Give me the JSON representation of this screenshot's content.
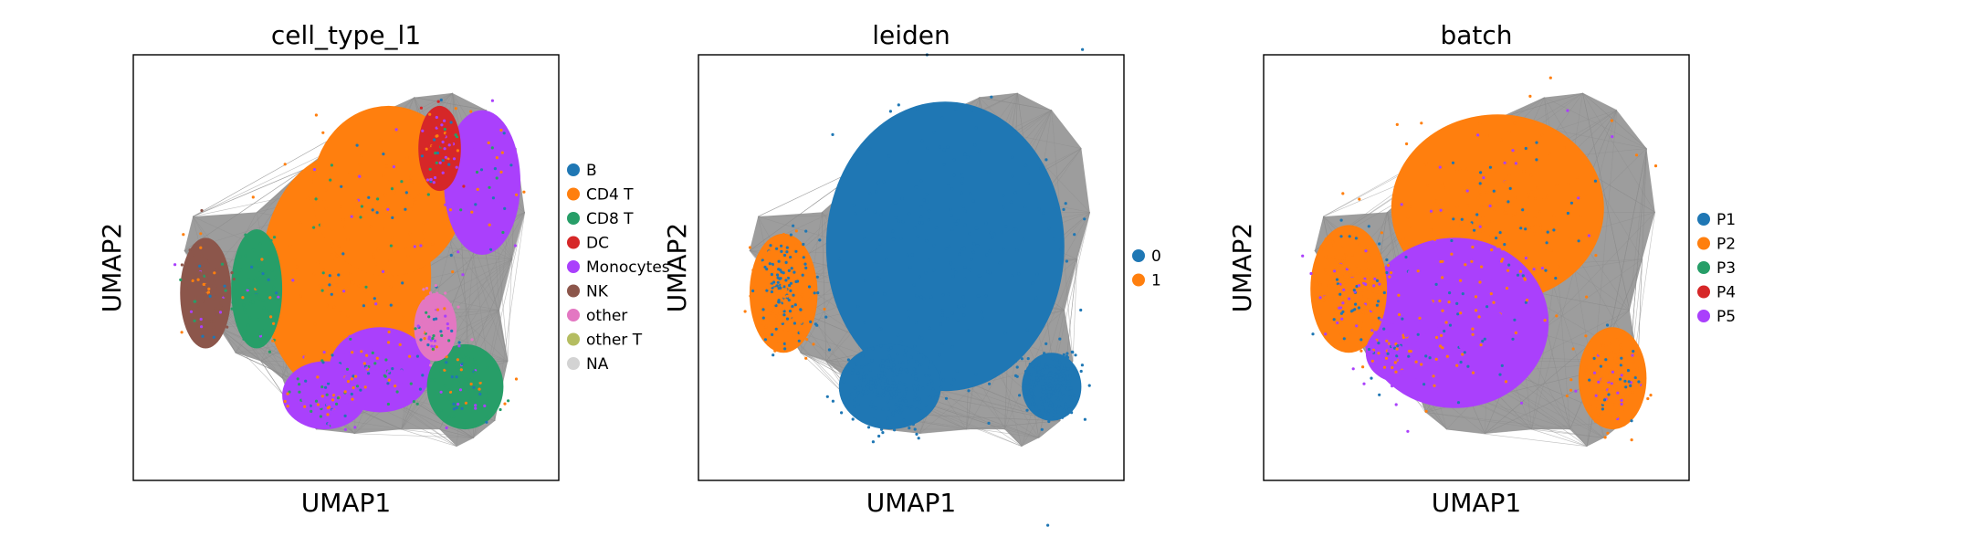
{
  "chart_data": [
    {
      "type": "scatter",
      "title": "cell_type_l1",
      "xlabel": "UMAP1",
      "ylabel": "UMAP2",
      "grid": false,
      "ticks": "none",
      "legend_placement": "right, outside plot",
      "legend": [
        {
          "label": "B",
          "color": "#1f77b4"
        },
        {
          "label": "CD4 T",
          "color": "#ff7f0e"
        },
        {
          "label": "CD8 T",
          "color": "#279e68"
        },
        {
          "label": "DC",
          "color": "#d62728"
        },
        {
          "label": "Monocytes",
          "color": "#aa40fc"
        },
        {
          "label": "NK",
          "color": "#8c564b"
        },
        {
          "label": "other",
          "color": "#e377c2"
        },
        {
          "label": "other T",
          "color": "#b5bd61"
        },
        {
          "label": "NA",
          "color": "#d3d3d3"
        }
      ]
    },
    {
      "type": "scatter",
      "title": "leiden",
      "xlabel": "UMAP1",
      "ylabel": "UMAP2",
      "grid": false,
      "ticks": "none",
      "legend_placement": "right, outside plot",
      "legend": [
        {
          "label": "0",
          "color": "#1f77b4"
        },
        {
          "label": "1",
          "color": "#ff7f0e"
        }
      ]
    },
    {
      "type": "scatter",
      "title": "batch",
      "xlabel": "UMAP1",
      "ylabel": "UMAP2",
      "grid": false,
      "ticks": "none",
      "legend_placement": "right, outside plot",
      "legend": [
        {
          "label": "P1",
          "color": "#1f77b4"
        },
        {
          "label": "P2",
          "color": "#ff7f0e"
        },
        {
          "label": "P3",
          "color": "#279e68"
        },
        {
          "label": "P4",
          "color": "#d62728"
        },
        {
          "label": "P5",
          "color": "#aa40fc"
        }
      ]
    }
  ]
}
